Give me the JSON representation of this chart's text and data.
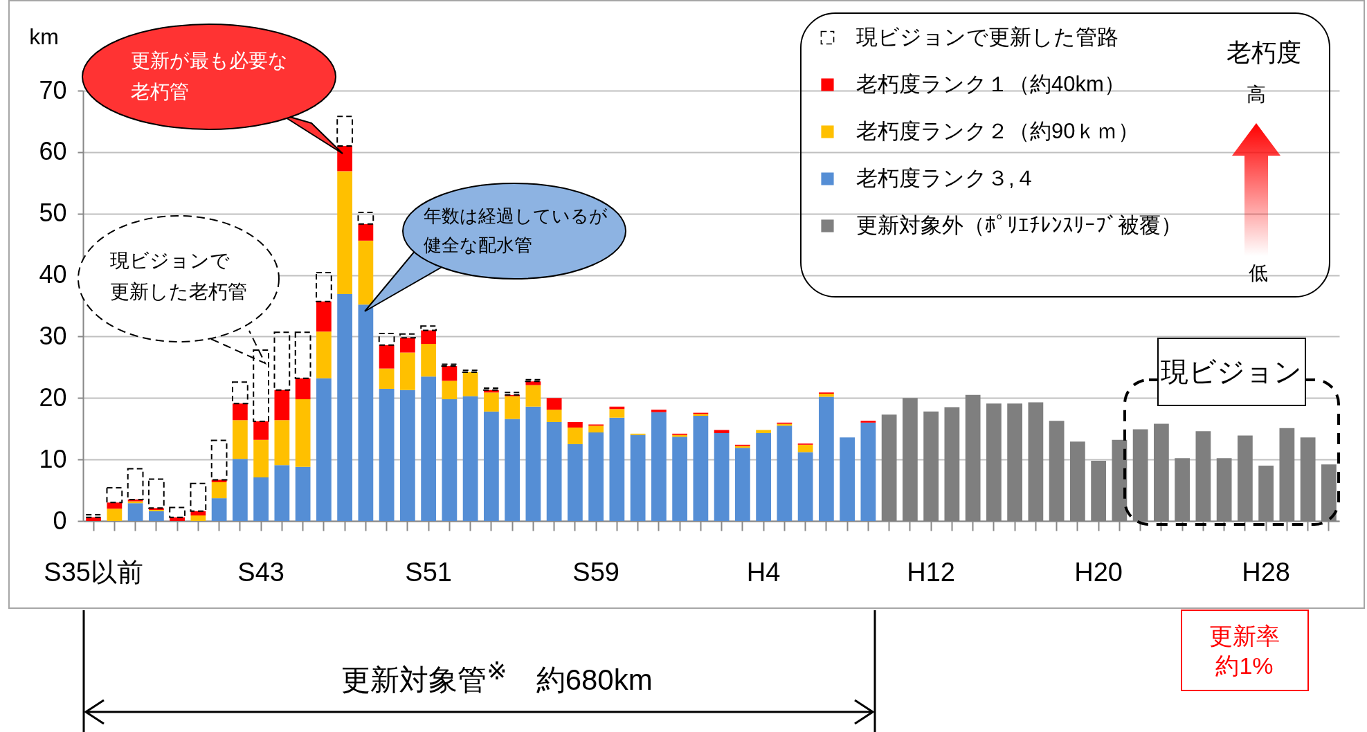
{
  "chart_data": {
    "type": "bar",
    "stacked": true,
    "ylabel": "km",
    "ylim": [
      0,
      70
    ],
    "yticks": [
      0,
      10,
      20,
      30,
      40,
      50,
      60,
      70
    ],
    "grid": "y",
    "legend": "top right",
    "categories": [
      "S35以前",
      null,
      null,
      null,
      null,
      null,
      null,
      null,
      "S43",
      null,
      null,
      null,
      null,
      null,
      null,
      null,
      "S51",
      null,
      null,
      null,
      null,
      null,
      null,
      null,
      "S59",
      null,
      null,
      null,
      null,
      null,
      null,
      null,
      "H4",
      null,
      null,
      null,
      null,
      null,
      null,
      null,
      "H12",
      null,
      null,
      null,
      null,
      null,
      null,
      null,
      "H20",
      null,
      null,
      null,
      null,
      null,
      null,
      null,
      "H28",
      null,
      null,
      null
    ],
    "series": [
      {
        "name": "更新対象外（ﾎﾟﾘｴﾁﾚﾝｽﾘｰﾌﾞ被覆）",
        "color": "#7f7f7f",
        "values": [
          null,
          null,
          null,
          null,
          null,
          null,
          null,
          null,
          null,
          null,
          null,
          null,
          null,
          null,
          null,
          null,
          null,
          null,
          null,
          null,
          null,
          null,
          null,
          null,
          null,
          null,
          null,
          null,
          null,
          null,
          null,
          null,
          null,
          null,
          null,
          null,
          null,
          null,
          17.3,
          20.0,
          17.8,
          18.5,
          20.5,
          19.1,
          19.1,
          19.3,
          16.3,
          12.9,
          9.8,
          13.2,
          14.9,
          15.8,
          10.2,
          14.6,
          10.2,
          13.9,
          9.0,
          15.1,
          13.6,
          9.2
        ]
      },
      {
        "name": "老朽度ランク３,４",
        "color": "#558ed5",
        "values": [
          null,
          null,
          2.9,
          1.6,
          null,
          null,
          3.7,
          10.1,
          7.1,
          9.1,
          8.8,
          23.2,
          36.9,
          35.2,
          21.5,
          21.3,
          23.5,
          19.8,
          20.3,
          17.8,
          16.6,
          18.6,
          16.1,
          12.5,
          14.4,
          16.8,
          14.0,
          17.7,
          13.7,
          17.1,
          14.3,
          11.9,
          14.3,
          15.5,
          11.2,
          20.2,
          13.6,
          16.0,
          null,
          null,
          null,
          null,
          null,
          null,
          null,
          null,
          null,
          null,
          null,
          null,
          null,
          null,
          null,
          null,
          null,
          null,
          null,
          null,
          null,
          null
        ]
      },
      {
        "name": "老朽度ランク２（約90ｋｍ）",
        "color": "#ffc000",
        "values": [
          null,
          2.0,
          0.3,
          0.2,
          null,
          0.9,
          2.6,
          6.3,
          6.1,
          7.3,
          11.0,
          7.6,
          20.0,
          10.4,
          3.3,
          6.1,
          5.3,
          3.0,
          3.9,
          3.1,
          3.7,
          3.5,
          2.0,
          2.7,
          1.1,
          1.4,
          0.2,
          null,
          0.3,
          0.3,
          null,
          0.3,
          0.5,
          0.3,
          1.2,
          0.5,
          null,
          null,
          null,
          null,
          null,
          null,
          null,
          null,
          null,
          null,
          null,
          null,
          null,
          null,
          null,
          null,
          null,
          null,
          null,
          null,
          null,
          null,
          null,
          null
        ]
      },
      {
        "name": "老朽度ランク１（約40km）",
        "color": "#ff0000",
        "values": [
          0.6,
          1.0,
          0.3,
          0.3,
          0.6,
          0.7,
          0.4,
          2.7,
          3.0,
          4.9,
          3.4,
          4.9,
          4.1,
          2.7,
          3.8,
          2.4,
          2.2,
          2.4,
          null,
          0.4,
          0.2,
          0.6,
          1.9,
          0.9,
          0.2,
          0.4,
          null,
          0.4,
          0.2,
          0.2,
          0.5,
          0.2,
          null,
          0.2,
          0.2,
          0.2,
          null,
          0.3,
          null,
          null,
          null,
          null,
          null,
          null,
          null,
          null,
          null,
          null,
          null,
          null,
          null,
          null,
          null,
          null,
          null,
          null,
          null,
          null,
          null,
          null
        ]
      },
      {
        "name": "現ビジョンで更新した管路",
        "color": "#000000",
        "line_style": "dashed",
        "values": [
          0.4,
          2.4,
          5.0,
          4.7,
          1.6,
          4.5,
          6.4,
          3.5,
          11.6,
          9.4,
          7.5,
          4.7,
          4.8,
          1.9,
          1.9,
          0.6,
          0.7,
          0.3,
          0.3,
          0.3,
          0.4,
          0.3,
          null,
          null,
          null,
          null,
          null,
          null,
          null,
          null,
          null,
          null,
          null,
          null,
          null,
          null,
          null,
          null,
          null,
          null,
          null,
          null,
          null,
          null,
          null,
          null,
          null,
          null,
          null,
          null,
          null,
          null,
          null,
          null,
          null,
          null,
          null,
          null,
          null,
          null
        ]
      }
    ],
    "annotations": [
      "更新が最も必要な老朽管",
      "現ビジョンで更新した老朽管",
      "年数は経過しているが健全な配水管",
      "現ビジョン",
      "老朽度",
      "高",
      "低",
      "更新対象管$^{※}$　約680km",
      "更新率約1%"
    ]
  }
}
